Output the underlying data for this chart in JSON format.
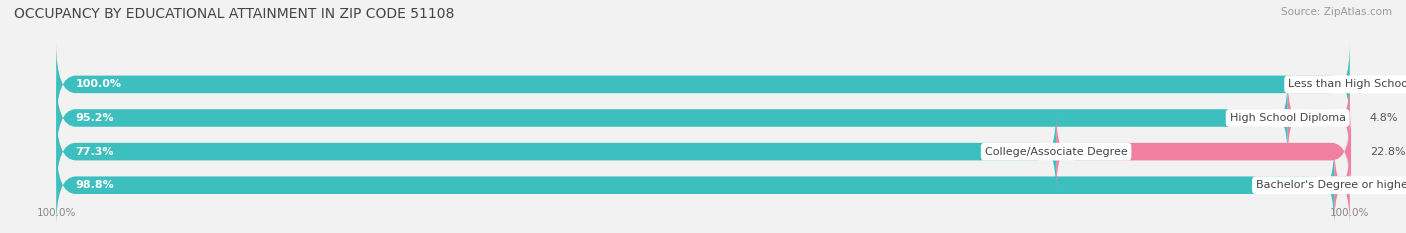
{
  "title": "OCCUPANCY BY EDUCATIONAL ATTAINMENT IN ZIP CODE 51108",
  "source": "Source: ZipAtlas.com",
  "categories": [
    "Less than High School",
    "High School Diploma",
    "College/Associate Degree",
    "Bachelor's Degree or higher"
  ],
  "owner_values": [
    100.0,
    95.2,
    77.3,
    98.8
  ],
  "renter_values": [
    0.0,
    4.8,
    22.8,
    1.2
  ],
  "owner_color": "#3dbfbf",
  "renter_color": "#f080a0",
  "background_color": "#f2f2f2",
  "bar_bg_color": "#e2e2e2",
  "title_fontsize": 10,
  "source_fontsize": 7.5,
  "label_fontsize": 8,
  "value_fontsize": 8,
  "tick_fontsize": 7.5,
  "legend_fontsize": 8,
  "figsize": [
    14.06,
    2.33
  ],
  "dpi": 100
}
